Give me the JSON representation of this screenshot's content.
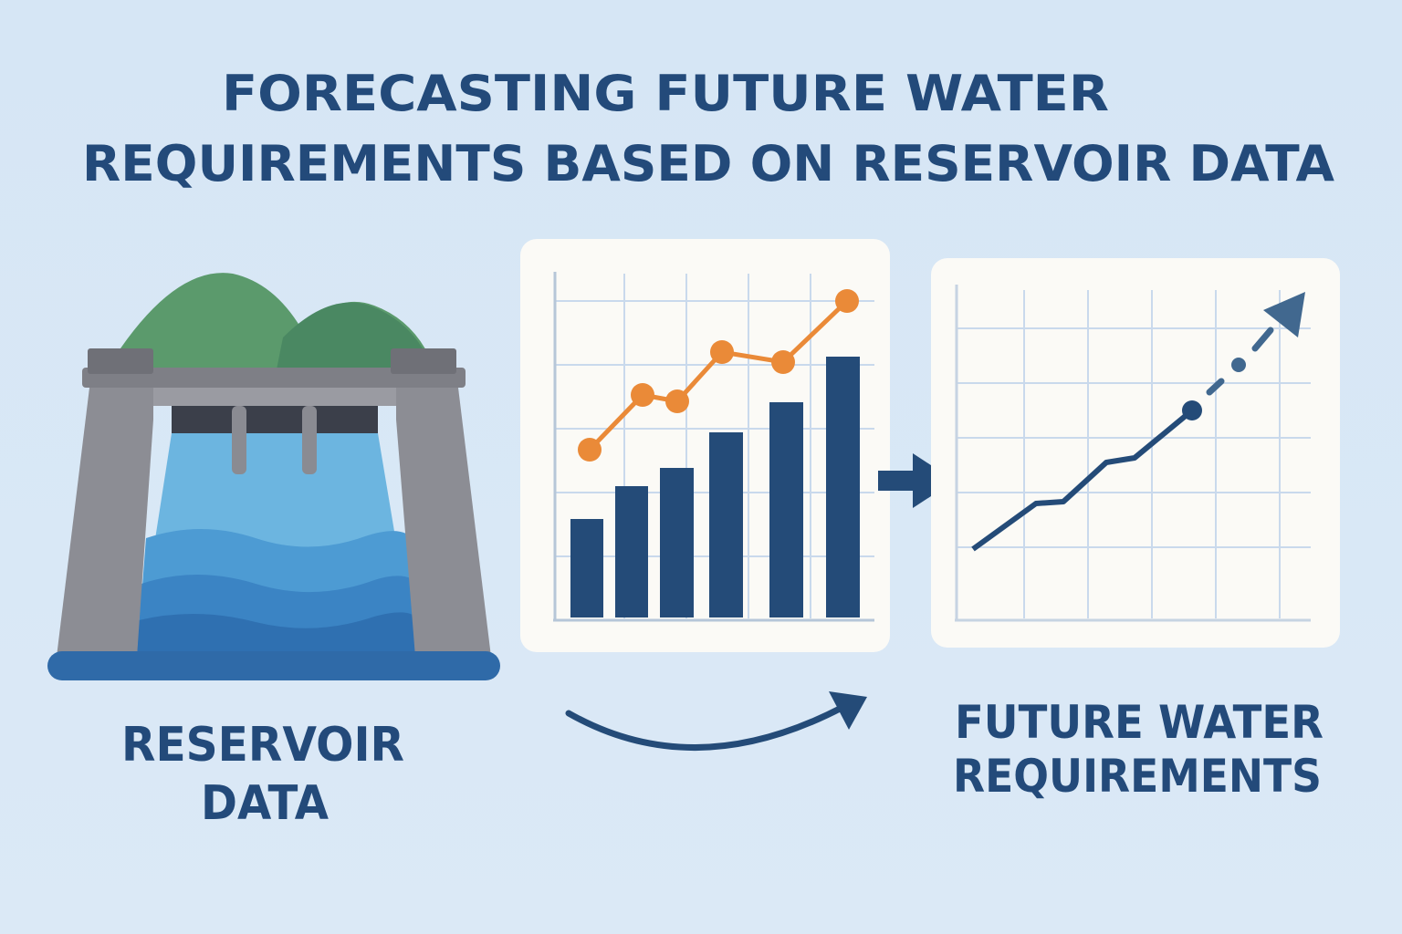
{
  "header": {
    "title_lines": [
      "FORECASTING FUTURE WATER",
      "REQUIREMENTS BASED ON RESERVOIR DATA"
    ]
  },
  "labels": {
    "reservoir": [
      "RESERVOIR",
      "DATA"
    ],
    "future": [
      "FUTURE WATER",
      "REQUIREMENTS"
    ]
  }
}
